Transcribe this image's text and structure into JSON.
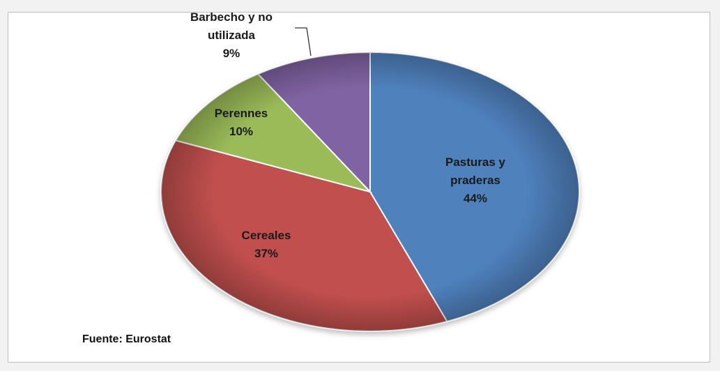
{
  "chart_data": {
    "type": "pie",
    "title": "",
    "slices": [
      {
        "label": [
          "Pasturas y",
          "praderas"
        ],
        "percent_label": "44%",
        "value": 44,
        "color": "#4f81bd"
      },
      {
        "label": [
          "Cereales"
        ],
        "percent_label": "37%",
        "value": 37,
        "color": "#c0504d"
      },
      {
        "label": [
          "Perennes"
        ],
        "percent_label": "10%",
        "value": 10,
        "color": "#9bbb59"
      },
      {
        "label": [
          "Barbecho y no",
          "utilizada"
        ],
        "percent_label": "9%",
        "value": 9,
        "color": "#8064a2"
      }
    ],
    "start": "top",
    "direction": "clockwise",
    "legend": "none"
  },
  "source": "Fuente: Eurostat"
}
